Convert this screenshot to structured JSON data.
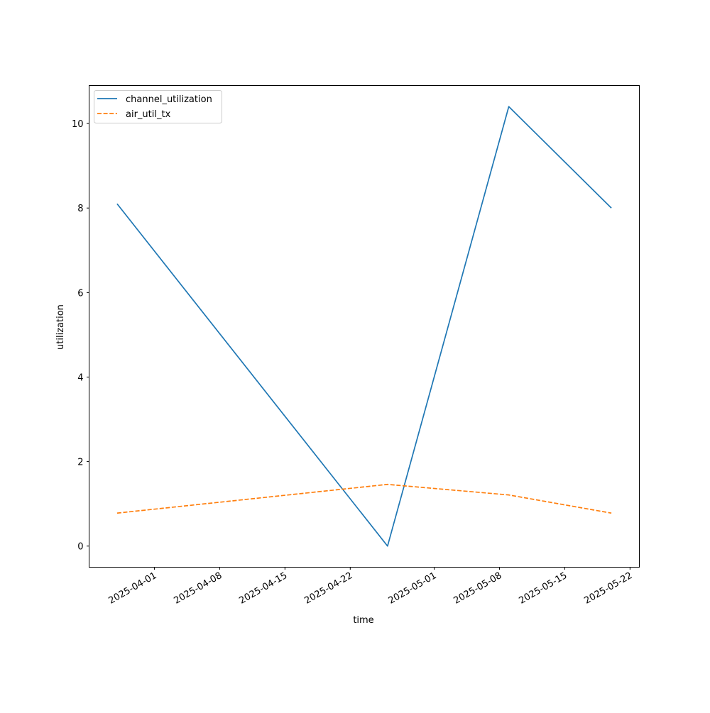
{
  "chart_data": {
    "type": "line",
    "title": "",
    "xlabel": "time",
    "ylabel": "utilization",
    "x_tick_labels": [
      "2025-04-01",
      "2025-04-08",
      "2025-04-15",
      "2025-04-22",
      "2025-05-01",
      "2025-05-08",
      "2025-05-15",
      "2025-05-22"
    ],
    "y_tick_labels": [
      "0",
      "2",
      "4",
      "6",
      "8",
      "10"
    ],
    "xlim": [
      "2025-03-25",
      "2025-05-23"
    ],
    "ylim": [
      -0.5,
      10.9
    ],
    "grid": false,
    "legend_position": "upper-left",
    "series": [
      {
        "name": "channel_utilization",
        "color": "#1f77b4",
        "style": "solid",
        "points": [
          {
            "x": "2025-03-28",
            "y": 8.1
          },
          {
            "x": "2025-04-26",
            "y": 0.0
          },
          {
            "x": "2025-05-09",
            "y": 10.4
          },
          {
            "x": "2025-05-20",
            "y": 8.0
          }
        ]
      },
      {
        "name": "air_util_tx",
        "color": "#ff7f0e",
        "style": "dashed",
        "points": [
          {
            "x": "2025-03-28",
            "y": 0.78
          },
          {
            "x": "2025-04-26",
            "y": 1.46
          },
          {
            "x": "2025-05-09",
            "y": 1.21
          },
          {
            "x": "2025-05-20",
            "y": 0.78
          }
        ]
      }
    ]
  }
}
